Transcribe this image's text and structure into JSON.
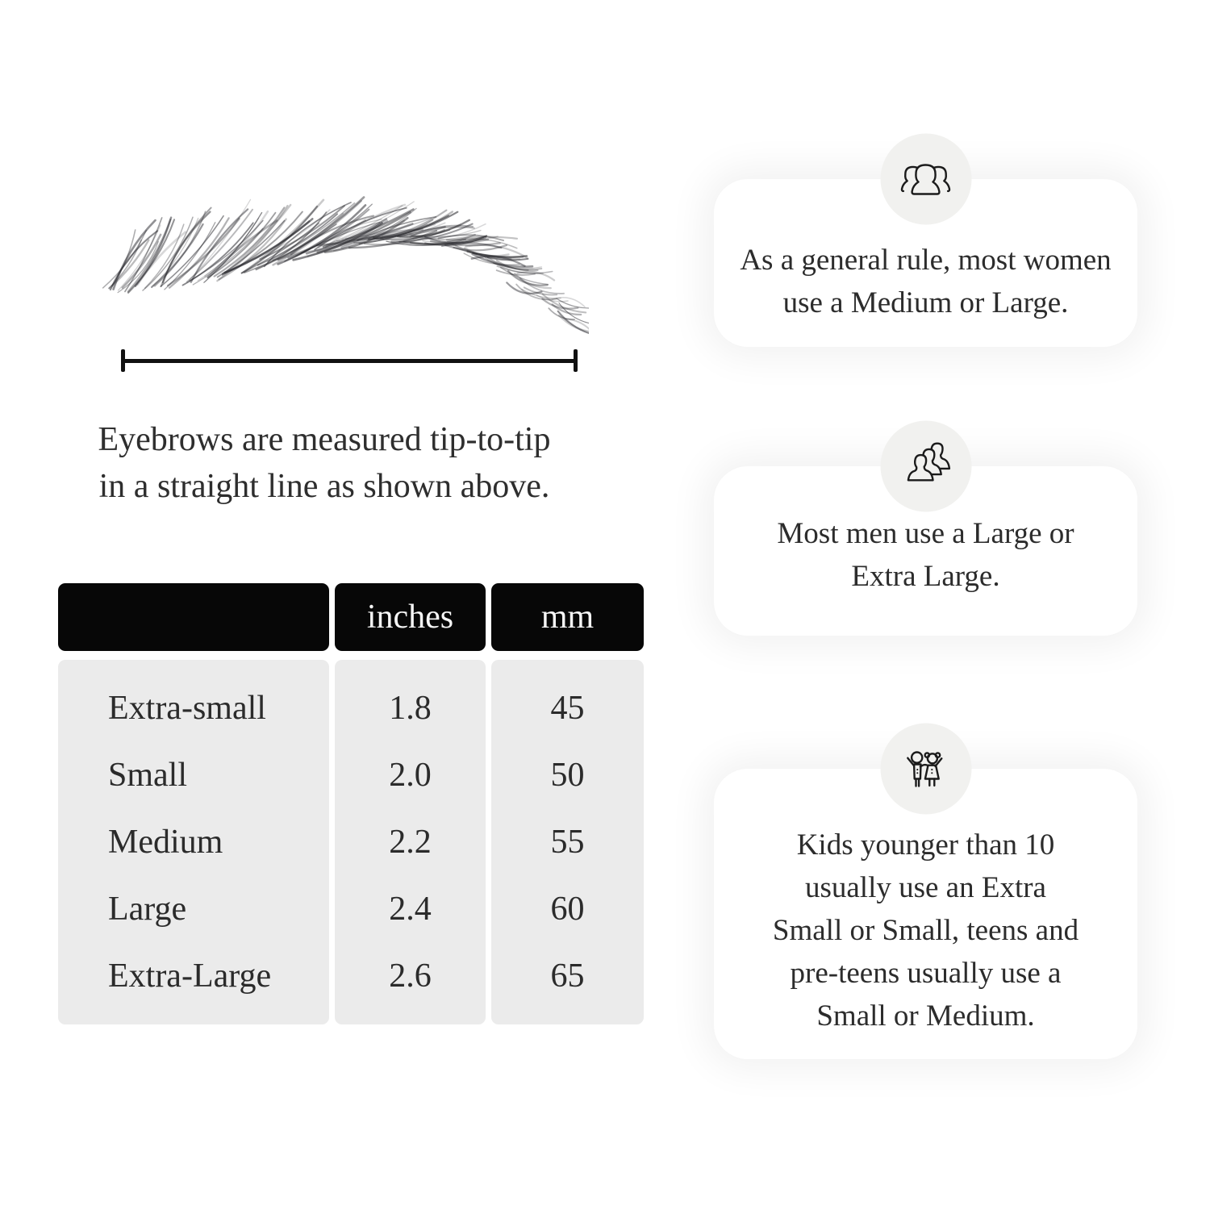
{
  "figure": {
    "illustration": "eyebrow sketch",
    "measurement_line": "tip-to-tip span",
    "caption_lines": [
      "Eyebrows are measured tip-to-tip",
      "in a straight line as shown above."
    ]
  },
  "table": {
    "headers": {
      "size": "",
      "inches": "inches",
      "mm": "mm"
    },
    "rows": [
      {
        "size": "Extra-small",
        "inches": "1.8",
        "mm": "45"
      },
      {
        "size": "Small",
        "inches": "2.0",
        "mm": "50"
      },
      {
        "size": "Medium",
        "inches": "2.2",
        "mm": "55"
      },
      {
        "size": "Large",
        "inches": "2.4",
        "mm": "60"
      },
      {
        "size": "Extra-Large",
        "inches": "2.6",
        "mm": "65"
      }
    ]
  },
  "cards": [
    {
      "icon": "women-group-icon",
      "text_lines": [
        "As a general rule, most women",
        "use a Medium or Large."
      ]
    },
    {
      "icon": "men-group-icon",
      "text_lines": [
        "Most men use a Large or",
        "Extra Large."
      ]
    },
    {
      "icon": "kids-icon",
      "text_lines": [
        "Kids younger than 10",
        "usually use an Extra",
        "Small or Small, teens and",
        "pre-teens usually use a",
        "Small or Medium."
      ]
    }
  ],
  "colors": {
    "page_background": "#ffffff",
    "table_header_background": "#070707",
    "table_header_text": "#f6f6f6",
    "table_body_background": "#ebebeb",
    "card_background": "#ffffff",
    "icon_circle_background": "#f1f1ef",
    "text": "#2b2b2b",
    "line_art": "#1b1b1b"
  }
}
